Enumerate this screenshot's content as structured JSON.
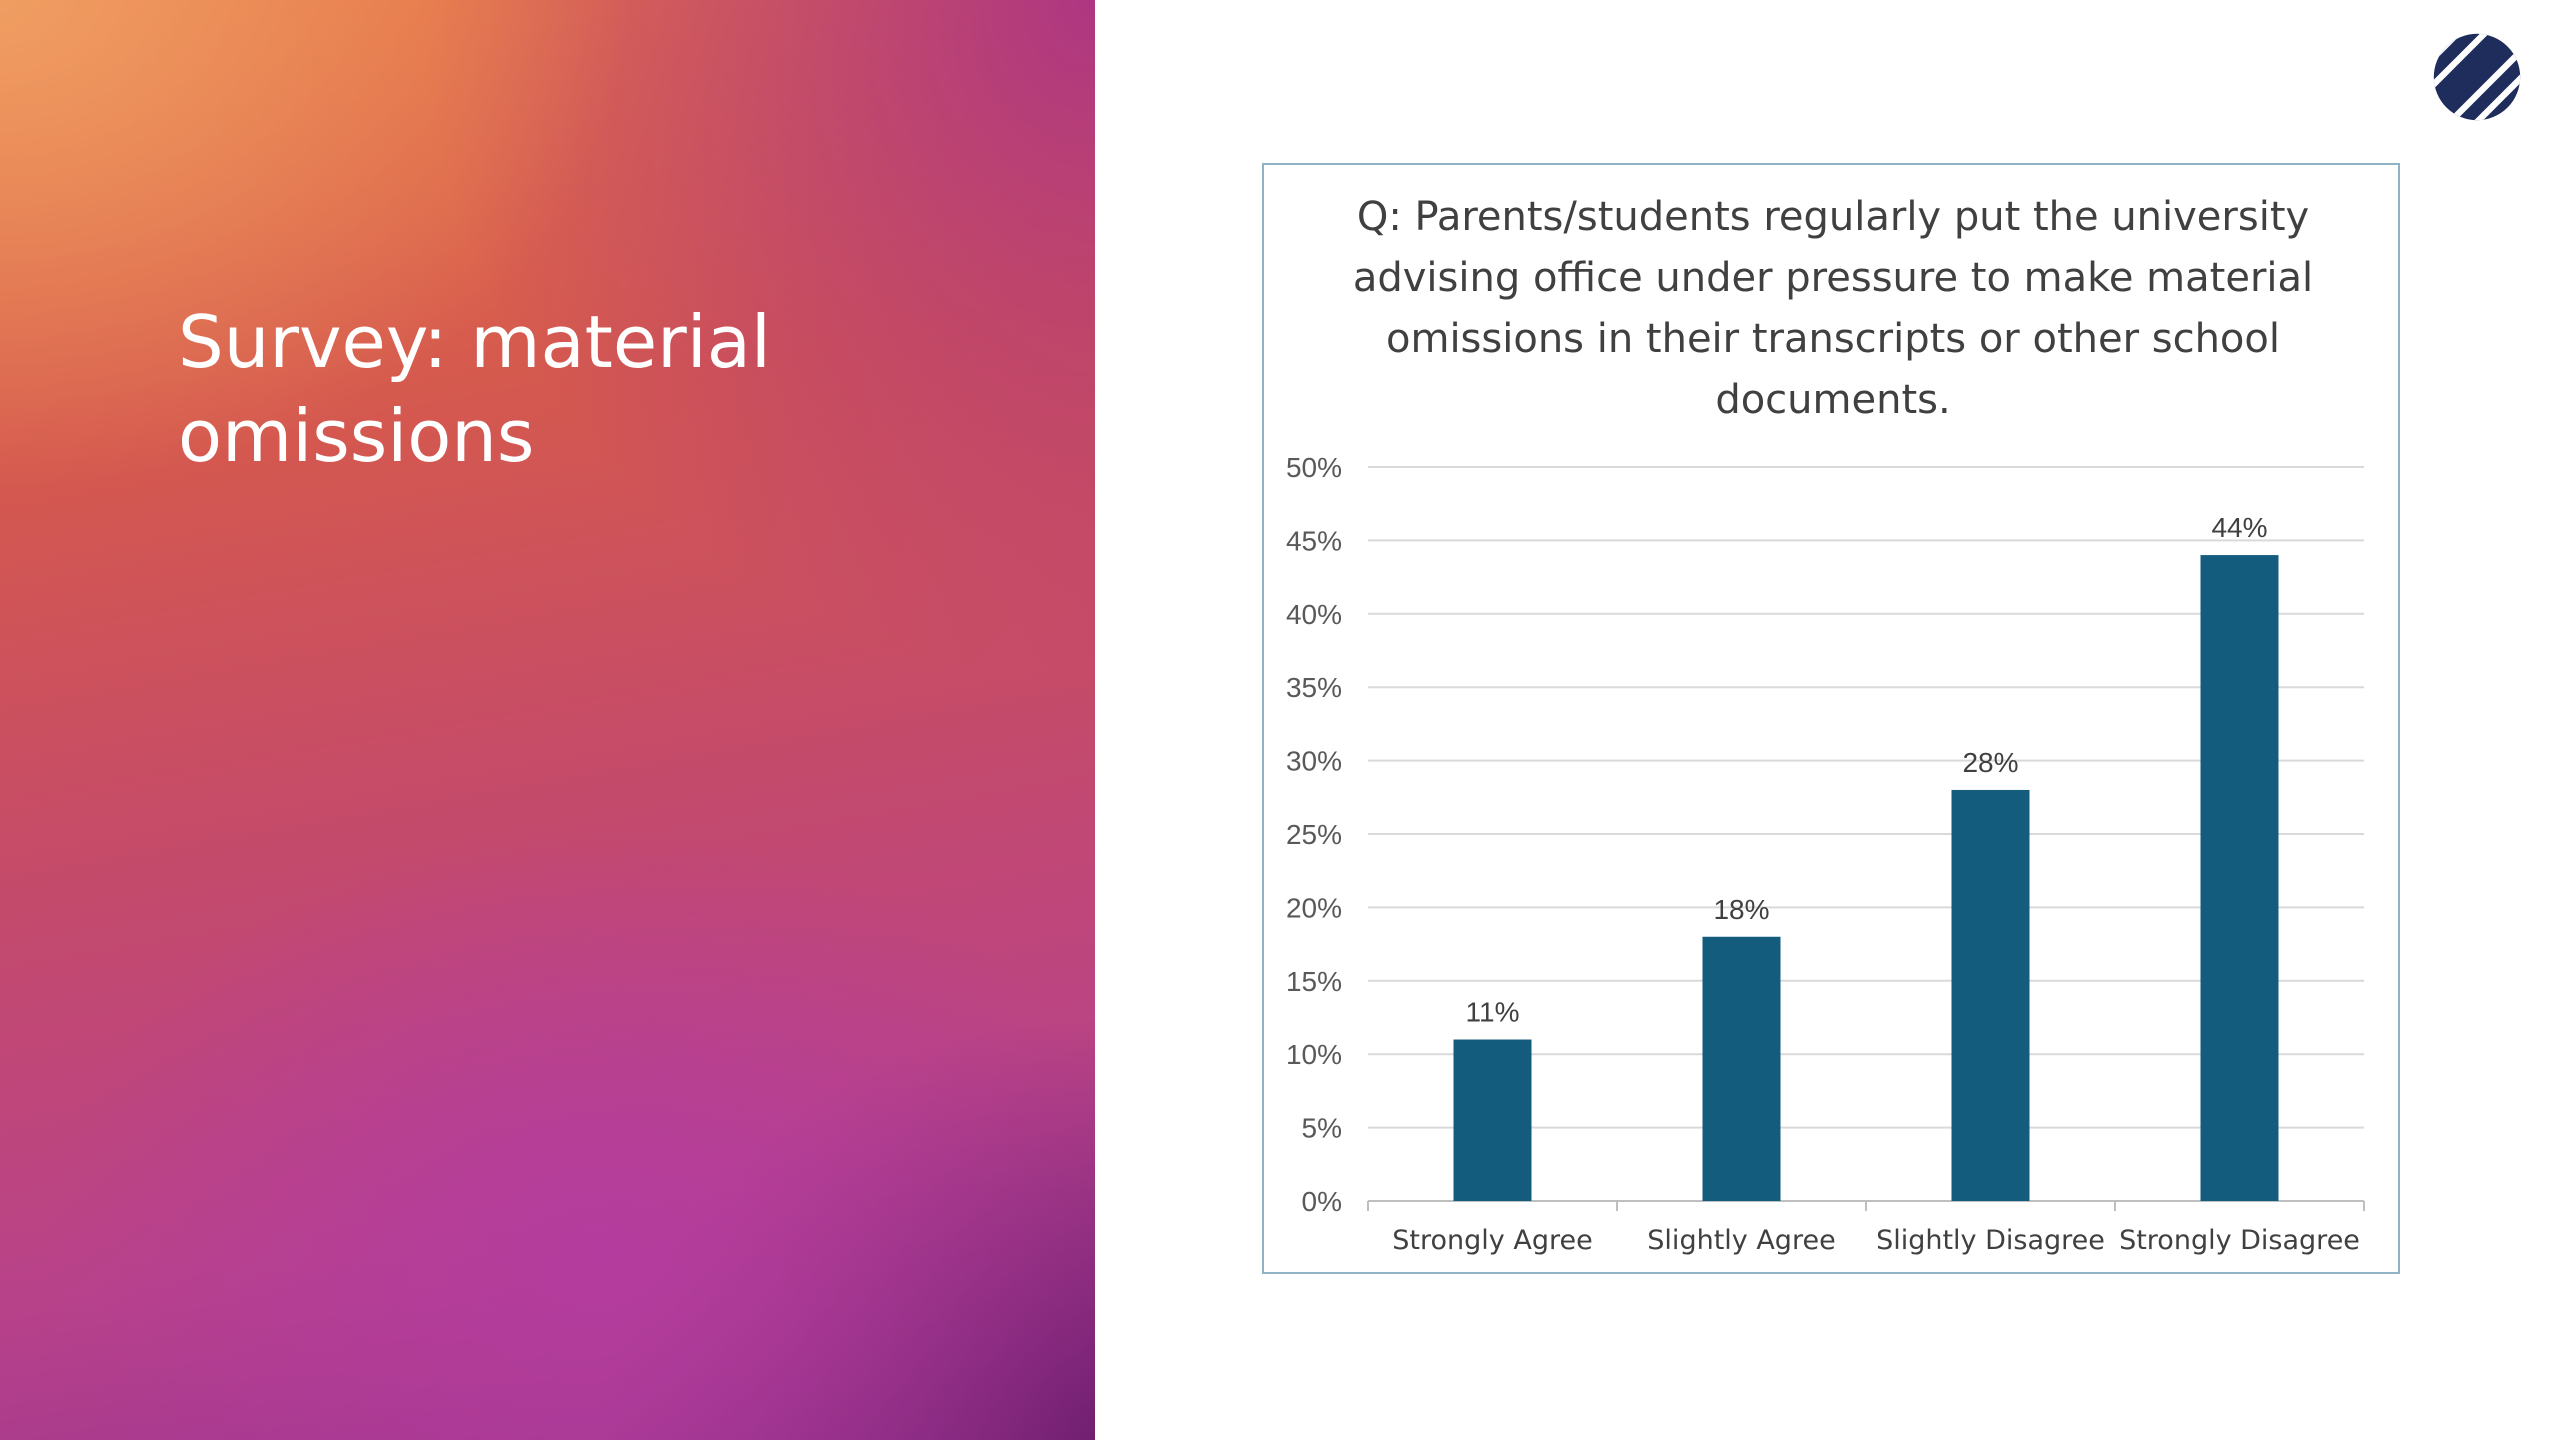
{
  "slide": {
    "title": "Survey: material omissions",
    "logo_icon": "striped-circle-logo",
    "logo_color": "#1f2d5c"
  },
  "colors": {
    "bar": "#145c7d",
    "frame_border": "#8fb3c2"
  },
  "chart_data": {
    "type": "bar",
    "title": "Q: Parents/students regularly put the university advising office under pressure to make material omissions in their transcripts or other school documents.",
    "categories": [
      "Strongly Agree",
      "Slightly Agree",
      "Slightly Disagree",
      "Strongly Disagree"
    ],
    "values": [
      11,
      18,
      28,
      44
    ],
    "value_labels": [
      "11%",
      "18%",
      "28%",
      "44%"
    ],
    "ylim": [
      0,
      50
    ],
    "yticks": [
      0,
      5,
      10,
      15,
      20,
      25,
      30,
      35,
      40,
      45,
      50
    ],
    "ytick_labels": [
      "0%",
      "5%",
      "10%",
      "15%",
      "20%",
      "25%",
      "30%",
      "35%",
      "40%",
      "45%",
      "50%"
    ],
    "grid": true,
    "legend": "none",
    "xlabel": "",
    "ylabel": ""
  }
}
